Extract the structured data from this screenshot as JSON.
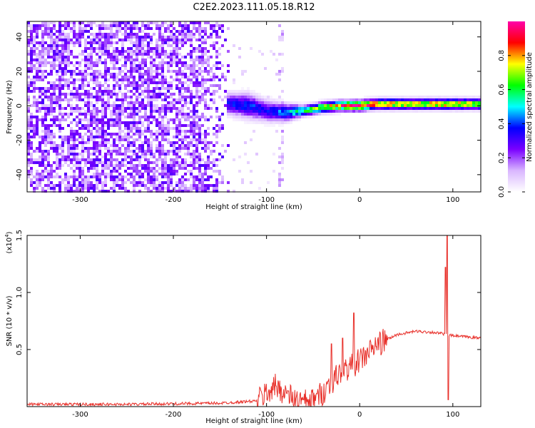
{
  "chart_data": [
    {
      "type": "heatmap",
      "title": "C2E2.2023.111.05.18.R12",
      "xlabel": "Height of straight line (km)",
      "ylabel": "Frequency (Hz)",
      "xlim": [
        -357,
        130
      ],
      "ylim": [
        -50,
        49
      ],
      "xticks": [
        -300,
        -200,
        -100,
        0,
        100
      ],
      "yticks": [
        -40,
        -20,
        0,
        20,
        40
      ],
      "colorbar": {
        "label": "Normalized spectral amplitude",
        "range": [
          0.0,
          1.0
        ],
        "ticks": [
          "0.0",
          "0.2",
          "0.4",
          "0.6",
          "0.8"
        ],
        "tick_values": [
          0.0,
          0.2,
          0.4,
          0.6,
          0.8
        ],
        "colors": [
          "#ffffff",
          "#d9b6ff",
          "#7a00ff",
          "#0000ff",
          "#00ffff",
          "#00ff00",
          "#ffff00",
          "#ff0000",
          "#ff00aa"
        ]
      },
      "regions": {
        "noise_x_range": [
          -357,
          -140
        ],
        "gap_x_range": [
          -140,
          -80
        ],
        "speckle_column_x": -80,
        "signal_band": [
          {
            "x": -140,
            "f": 1,
            "width": 6,
            "amp": 0.35
          },
          {
            "x": -120,
            "f": 0,
            "width": 7,
            "amp": 0.4
          },
          {
            "x": -100,
            "f": -3,
            "width": 6,
            "amp": 0.35
          },
          {
            "x": -80,
            "f": -4,
            "width": 5,
            "amp": 0.45
          },
          {
            "x": -60,
            "f": -3,
            "width": 3,
            "amp": 0.6
          },
          {
            "x": -40,
            "f": -1,
            "width": 3,
            "amp": 0.7
          },
          {
            "x": -20,
            "f": 0,
            "width": 3,
            "amp": 0.85
          },
          {
            "x": 0,
            "f": 0,
            "width": 3,
            "amp": 0.95
          },
          {
            "x": 20,
            "f": 1,
            "width": 3,
            "amp": 0.8
          },
          {
            "x": 60,
            "f": 1,
            "width": 3,
            "amp": 0.75
          },
          {
            "x": 90,
            "f": 1,
            "width": 3,
            "amp": 0.8
          },
          {
            "x": 130,
            "f": 1,
            "width": 3,
            "amp": 0.75
          }
        ]
      }
    },
    {
      "type": "line",
      "xlabel": "Height of straight line (km)",
      "ylabel": "SNR (10 * v/v)",
      "yscale_label": "(x10",
      "yscale_exp": "4",
      "yscale_close": ")",
      "xlim": [
        -357,
        130
      ],
      "ylim": [
        0,
        1.5
      ],
      "xticks": [
        -300,
        -200,
        -100,
        0,
        100
      ],
      "yticks": [
        0.5,
        1.0,
        1.5
      ],
      "ytick_labels": [
        "0.5",
        "1.0",
        "1.5"
      ],
      "color": "#e8302a",
      "envelope": {
        "x": [
          -357,
          -250,
          -150,
          -110,
          -100,
          -90,
          -80,
          -70,
          -60,
          -50,
          -40,
          -30,
          -20,
          -10,
          0,
          10,
          20,
          40,
          60,
          80,
          88,
          94,
          100,
          115,
          130
        ],
        "y": [
          0.02,
          0.02,
          0.03,
          0.05,
          0.12,
          0.18,
          0.12,
          0.06,
          0.04,
          0.05,
          0.12,
          0.22,
          0.3,
          0.35,
          0.4,
          0.48,
          0.55,
          0.63,
          0.66,
          0.65,
          0.64,
          0.63,
          0.62,
          0.61,
          0.6
        ]
      },
      "spikes": [
        {
          "x": -30,
          "y": 0.55
        },
        {
          "x": -18,
          "y": 0.6
        },
        {
          "x": -6,
          "y": 0.82
        },
        {
          "x": 92,
          "y": 1.22
        },
        {
          "x": 94,
          "y": 1.5
        },
        {
          "x": 95,
          "y": 0.06
        }
      ]
    }
  ]
}
